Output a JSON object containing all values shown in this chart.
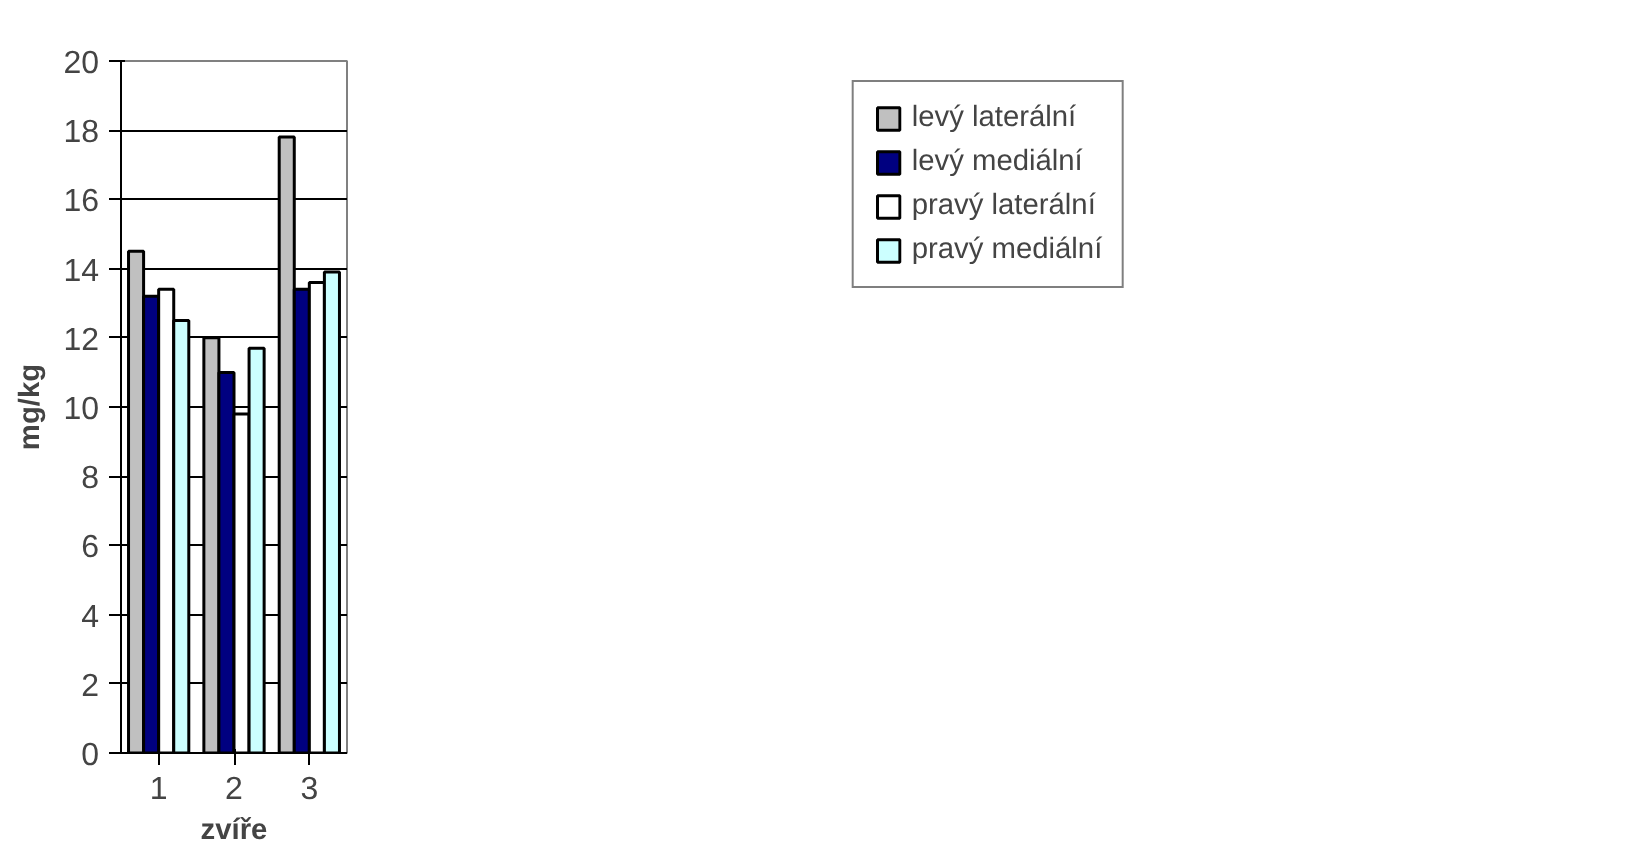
{
  "chart_data": {
    "type": "bar",
    "xlabel": "zvíře",
    "ylabel": "mg/kg",
    "categories": [
      "1",
      "2",
      "3"
    ],
    "series": [
      {
        "name": "levý laterální",
        "color": "#c0c0c0",
        "values": [
          14.5,
          12.0,
          17.8
        ]
      },
      {
        "name": "levý mediální",
        "color": "#000080",
        "values": [
          13.2,
          11.0,
          13.4
        ]
      },
      {
        "name": "pravý laterální",
        "color": "#ffffff",
        "values": [
          13.4,
          9.8,
          13.6
        ]
      },
      {
        "name": "pravý mediální",
        "color": "#ccffff",
        "values": [
          12.5,
          11.7,
          13.9
        ]
      }
    ],
    "ylim": [
      0,
      20
    ],
    "yticks": [
      0,
      2,
      4,
      6,
      8,
      10,
      12,
      14,
      16,
      18,
      20
    ],
    "grid": "y",
    "legend": "right"
  }
}
